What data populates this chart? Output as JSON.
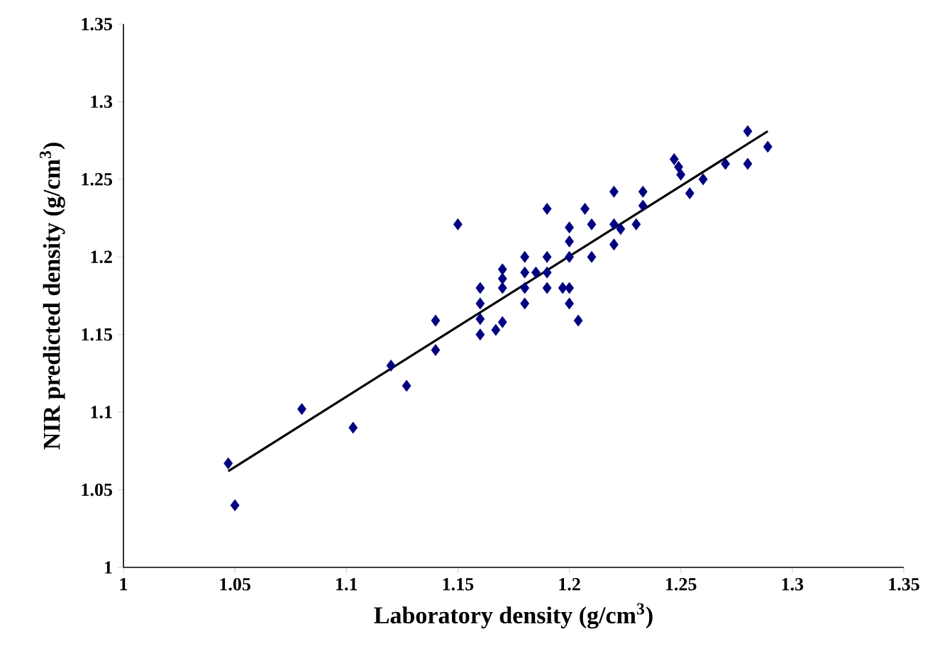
{
  "chart_data": {
    "type": "scatter",
    "xlabel": "Laboratory density (g/cm$^{3}$)",
    "ylabel": "NIR predicted density (g/cm$^{3}$)",
    "xlim": [
      1,
      1.35
    ],
    "ylim": [
      1,
      1.35
    ],
    "xticks": [
      1,
      1.05,
      1.1,
      1.15,
      1.2,
      1.25,
      1.3,
      1.35
    ],
    "yticks": [
      1,
      1.05,
      1.1,
      1.15,
      1.2,
      1.25,
      1.3,
      1.35
    ],
    "series": [
      {
        "color": "#000080",
        "marker": "diamond",
        "x": [
          1.047,
          1.05,
          1.08,
          1.103,
          1.12,
          1.127,
          1.14,
          1.14,
          1.15,
          1.16,
          1.16,
          1.16,
          1.16,
          1.167,
          1.17,
          1.17,
          1.17,
          1.17,
          1.18,
          1.18,
          1.18,
          1.18,
          1.185,
          1.19,
          1.19,
          1.19,
          1.19,
          1.197,
          1.2,
          1.2,
          1.2,
          1.2,
          1.2,
          1.204,
          1.207,
          1.21,
          1.21,
          1.22,
          1.22,
          1.22,
          1.223,
          1.23,
          1.233,
          1.233,
          1.247,
          1.249,
          1.25,
          1.254,
          1.26,
          1.27,
          1.28,
          1.28,
          1.289
        ],
        "values": [
          1.067,
          1.04,
          1.102,
          1.09,
          1.13,
          1.117,
          1.14,
          1.159,
          1.221,
          1.15,
          1.16,
          1.17,
          1.18,
          1.153,
          1.158,
          1.18,
          1.186,
          1.192,
          1.17,
          1.18,
          1.19,
          1.2,
          1.19,
          1.18,
          1.19,
          1.2,
          1.231,
          1.18,
          1.17,
          1.18,
          1.2,
          1.21,
          1.219,
          1.159,
          1.231,
          1.2,
          1.221,
          1.208,
          1.221,
          1.242,
          1.218,
          1.221,
          1.233,
          1.242,
          1.263,
          1.258,
          1.253,
          1.241,
          1.25,
          1.26,
          1.281,
          1.26,
          1.271
        ]
      },
      {
        "type": "line",
        "color": "#000000",
        "marker": "none",
        "line_style": "solid",
        "x": [
          1.047,
          1.289
        ],
        "values": [
          1.062,
          1.281
        ]
      }
    ]
  }
}
